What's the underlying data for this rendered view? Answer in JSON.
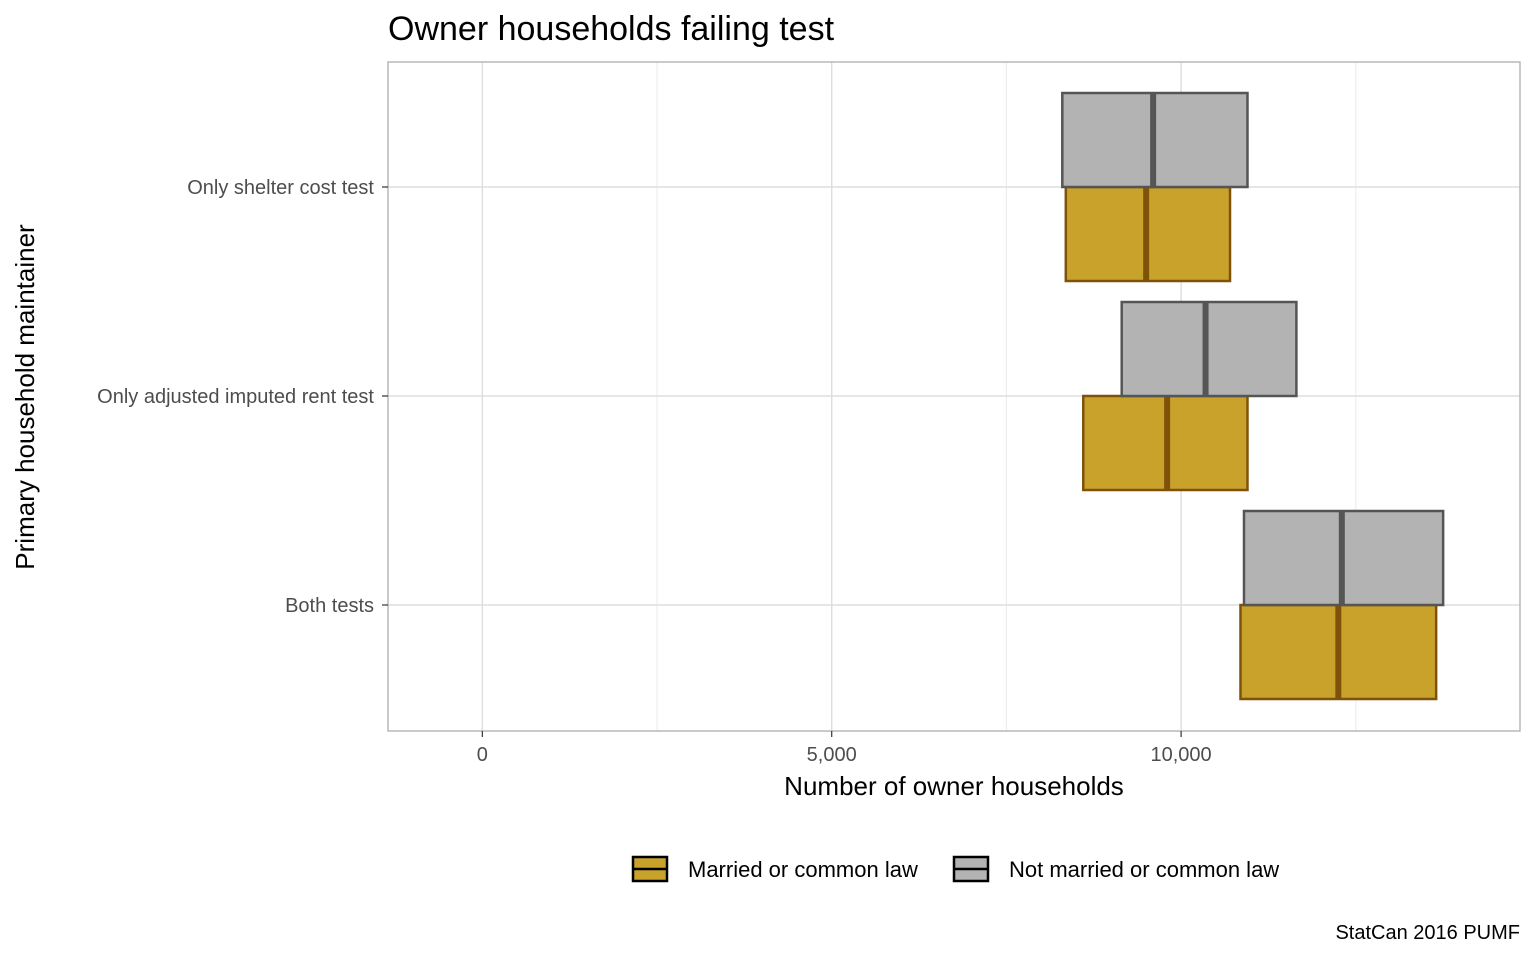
{
  "chart_data": {
    "type": "crossbar",
    "title": "Owner households failing test",
    "xlabel": "Number of owner households",
    "ylabel": "Primary household maintainer",
    "caption": "StatCan 2016 PUMF",
    "xlim": [
      -1350,
      14850
    ],
    "x_ticks": [
      0,
      5000,
      10000
    ],
    "x_tick_labels": [
      "0",
      "5,000",
      "10,000"
    ],
    "categories": [
      "Only shelter cost test",
      "Only adjusted imputed rent test",
      "Both tests"
    ],
    "grid": true,
    "legend_position": "bottom",
    "series": [
      {
        "name": "Married or common law",
        "fill": "#C9A22C",
        "stroke": "#7F5209",
        "data": [
          {
            "category": "Only shelter cost test",
            "low": 8350,
            "mid": 9500,
            "high": 10700
          },
          {
            "category": "Only adjusted imputed rent test",
            "low": 8600,
            "mid": 9800,
            "high": 10950
          },
          {
            "category": "Both tests",
            "low": 10850,
            "mid": 12250,
            "high": 13650
          }
        ]
      },
      {
        "name": "Not married or common law",
        "fill": "#B3B3B3",
        "stroke": "#555555",
        "data": [
          {
            "category": "Only shelter cost test",
            "low": 8300,
            "mid": 9600,
            "high": 10950
          },
          {
            "category": "Only adjusted imputed rent test",
            "low": 9150,
            "mid": 10350,
            "high": 11650
          },
          {
            "category": "Both tests",
            "low": 10900,
            "mid": 12300,
            "high": 13750
          }
        ]
      }
    ]
  }
}
